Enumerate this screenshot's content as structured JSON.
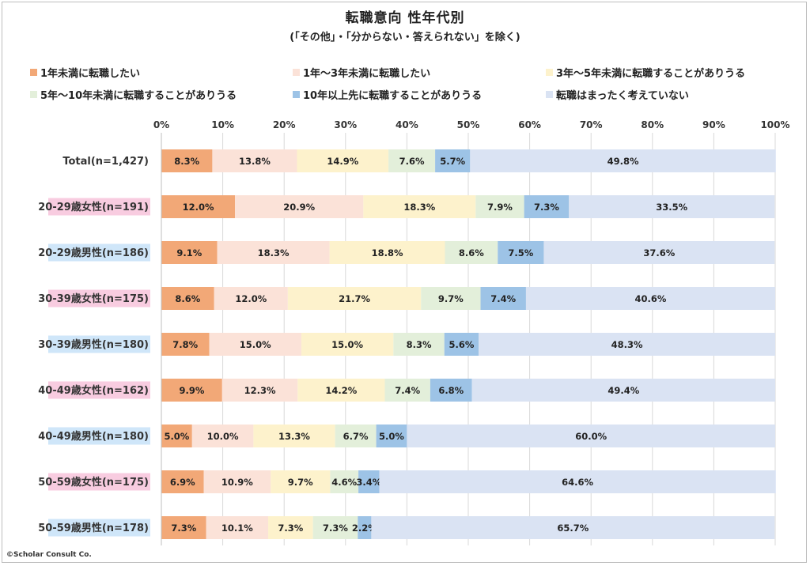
{
  "chart_data": {
    "type": "bar",
    "orientation": "horizontal",
    "stacked": true,
    "title": "転職意向 性年代別",
    "subtitle": "(「その他」・「分からない・答えられない」を除く)",
    "xlim": [
      0,
      100
    ],
    "xticks": [
      "0%",
      "10%",
      "20%",
      "30%",
      "40%",
      "50%",
      "60%",
      "70%",
      "80%",
      "90%",
      "100%"
    ],
    "grid": true,
    "legend_position": "top",
    "categories": [
      {
        "label": "Total(n=1,427)",
        "highlight": "none"
      },
      {
        "label": "20-29歳女性(n=191)",
        "highlight": "female"
      },
      {
        "label": "20-29歳男性(n=186)",
        "highlight": "male"
      },
      {
        "label": "30-39歳女性(n=175)",
        "highlight": "female"
      },
      {
        "label": "30-39歳男性(n=180)",
        "highlight": "male"
      },
      {
        "label": "40-49歳女性(n=162)",
        "highlight": "female"
      },
      {
        "label": "40-49歳男性(n=180)",
        "highlight": "male"
      },
      {
        "label": "50-59歳女性(n=175)",
        "highlight": "female"
      },
      {
        "label": "50-59歳男性(n=178)",
        "highlight": "male"
      }
    ],
    "highlight_colors": {
      "female": "#f8cce0",
      "male": "#cfe6f9",
      "none": "#ffffff"
    },
    "series": [
      {
        "name": "1年未満に転職したい",
        "color": "#f2a877",
        "values": [
          8.3,
          12.0,
          9.1,
          8.6,
          7.8,
          9.9,
          5.0,
          6.9,
          7.3
        ],
        "labels": [
          "8.3%",
          "12.0%",
          "9.1%",
          "8.6%",
          "7.8%",
          "9.9%",
          "5.0%",
          "6.9%",
          "7.3%"
        ]
      },
      {
        "name": "1年～3年未満に転職したい",
        "color": "#fbe2d8",
        "values": [
          13.8,
          20.9,
          18.3,
          12.0,
          15.0,
          12.3,
          10.0,
          10.9,
          10.1
        ],
        "labels": [
          "13.8%",
          "20.9%",
          "18.3%",
          "12.0%",
          "15.0%",
          "12.3%",
          "10.0%",
          "10.9%",
          "10.1%"
        ]
      },
      {
        "name": "3年～5年未満に転職することがありうる",
        "color": "#fdf2cc",
        "values": [
          14.9,
          18.3,
          18.8,
          21.7,
          15.0,
          14.2,
          13.3,
          9.7,
          7.3
        ],
        "labels": [
          "14.9%",
          "18.3%",
          "18.8%",
          "21.7%",
          "15.0%",
          "14.2%",
          "13.3%",
          "9.7%",
          "7.3%"
        ]
      },
      {
        "name": "5年～10年未満に転職することがありうる",
        "color": "#e3efda",
        "values": [
          7.6,
          7.9,
          8.6,
          9.7,
          8.3,
          7.4,
          6.7,
          4.6,
          7.3
        ],
        "labels": [
          "7.6%",
          "7.9%",
          "8.6%",
          "9.7%",
          "8.3%",
          "7.4%",
          "6.7%",
          "4.6%",
          "7.3%"
        ]
      },
      {
        "name": "10年以上先に転職することがありうる",
        "color": "#9dc3e6",
        "values": [
          5.7,
          7.3,
          7.5,
          7.4,
          5.6,
          6.8,
          5.0,
          3.4,
          2.2
        ],
        "labels": [
          "5.7%",
          "7.3%",
          "7.5%",
          "7.4%",
          "5.6%",
          "6.8%",
          "5.0%",
          "3.4%",
          "2.2%"
        ]
      },
      {
        "name": "転職はまったく考えていない",
        "color": "#dae3f3",
        "values": [
          49.8,
          33.5,
          37.6,
          40.6,
          48.3,
          49.4,
          60.0,
          64.6,
          65.7
        ],
        "labels": [
          "49.8%",
          "33.5%",
          "37.6%",
          "40.6%",
          "48.3%",
          "49.4%",
          "60.0%",
          "64.6%",
          "65.7%"
        ]
      }
    ]
  },
  "copyright": "©Scholar Consult Co."
}
